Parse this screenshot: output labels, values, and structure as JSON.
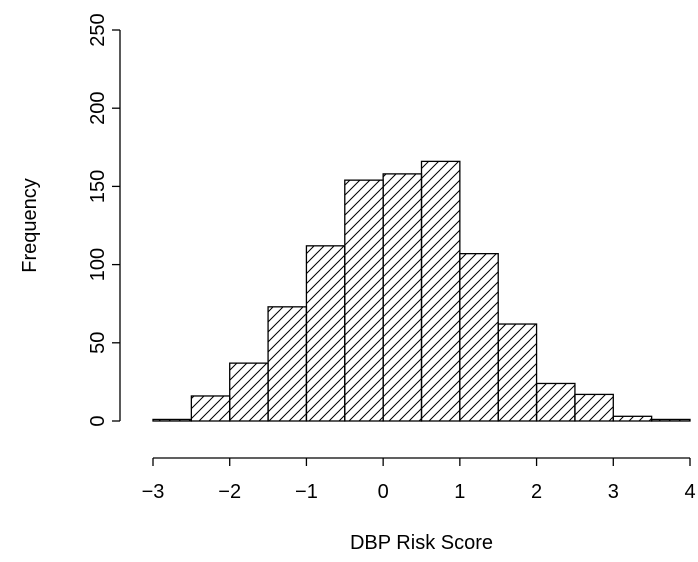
{
  "chart_data": {
    "type": "bar",
    "subtype": "histogram",
    "title": "",
    "xlabel": "DBP Risk Score",
    "ylabel": "Frequency",
    "xlim": [
      -3,
      4
    ],
    "ylim": [
      0,
      250
    ],
    "x_ticks": [
      "−3",
      "−2",
      "−1",
      "0",
      "1",
      "2",
      "3",
      "4"
    ],
    "x_tick_values": [
      -3,
      -2,
      -1,
      0,
      1,
      2,
      3,
      4
    ],
    "y_ticks": [
      "0",
      "50",
      "100",
      "150",
      "200",
      "250"
    ],
    "y_tick_values": [
      0,
      50,
      100,
      150,
      200,
      250
    ],
    "bins": [
      {
        "start": -3.0,
        "end": -2.5,
        "count": 1
      },
      {
        "start": -2.5,
        "end": -2.0,
        "count": 16
      },
      {
        "start": -2.0,
        "end": -1.5,
        "count": 37
      },
      {
        "start": -1.5,
        "end": -1.0,
        "count": 73
      },
      {
        "start": -1.0,
        "end": -0.5,
        "count": 112
      },
      {
        "start": -0.5,
        "end": 0.0,
        "count": 154
      },
      {
        "start": 0.0,
        "end": 0.5,
        "count": 158
      },
      {
        "start": 0.5,
        "end": 1.0,
        "count": 166
      },
      {
        "start": 1.0,
        "end": 1.5,
        "count": 107
      },
      {
        "start": 1.5,
        "end": 2.0,
        "count": 62
      },
      {
        "start": 2.0,
        "end": 2.5,
        "count": 24
      },
      {
        "start": 2.5,
        "end": 3.0,
        "count": 17
      },
      {
        "start": 3.0,
        "end": 3.5,
        "count": 3
      },
      {
        "start": 3.5,
        "end": 4.0,
        "count": 1
      }
    ],
    "fill": "diagonal-hatch",
    "colors": {
      "stroke": "#000000",
      "background": "#ffffff"
    },
    "grid": false,
    "legend": "none"
  }
}
